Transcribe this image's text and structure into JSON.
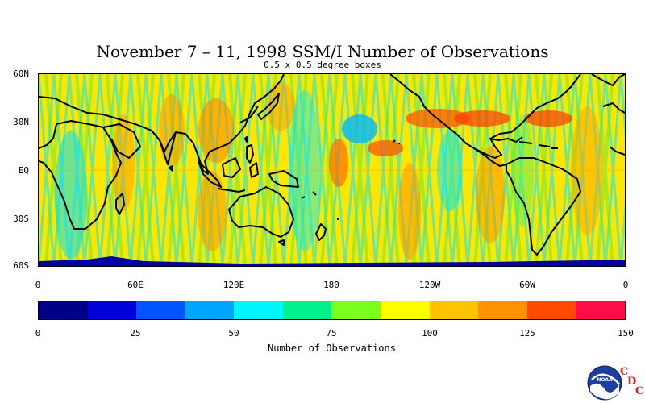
{
  "title": "November 7 – 11, 1998 SSM/I Number of Observations",
  "subtitle": "0.5 x 0.5 degree boxes",
  "map": {
    "lat_labels": [
      "60N",
      "30N",
      "EQ",
      "30S",
      "60S"
    ],
    "lat_values": [
      60,
      30,
      0,
      -30,
      -60
    ],
    "lon_labels": [
      "0",
      "60E",
      "120E",
      "180",
      "120W",
      "60W",
      "0"
    ],
    "lon_values": [
      0,
      60,
      120,
      180,
      240,
      300,
      360
    ],
    "lat_range": [
      -60,
      60
    ],
    "lon_range": [
      0,
      360
    ],
    "projection": "equirectangular, 0 to 360 longitude",
    "coastlines": true
  },
  "colorbar": {
    "colors": [
      "#000088",
      "#0000d8",
      "#0055ff",
      "#00a5ff",
      "#00f5ff",
      "#00f08c",
      "#78ff1e",
      "#ffff00",
      "#ffc300",
      "#ff9200",
      "#ff4b00",
      "#ff0d46"
    ],
    "tick_labels": [
      "0",
      "25",
      "50",
      "75",
      "100",
      "125",
      "150"
    ],
    "tick_values": [
      0,
      25,
      50,
      75,
      100,
      125,
      150
    ],
    "range": [
      0,
      150
    ],
    "label": "Number of Observations"
  },
  "logo": {
    "name": "NOAA",
    "text": "NOAA",
    "cdc_letters": [
      "C",
      "D",
      "C"
    ],
    "cdc_color": "#d0201c"
  }
}
